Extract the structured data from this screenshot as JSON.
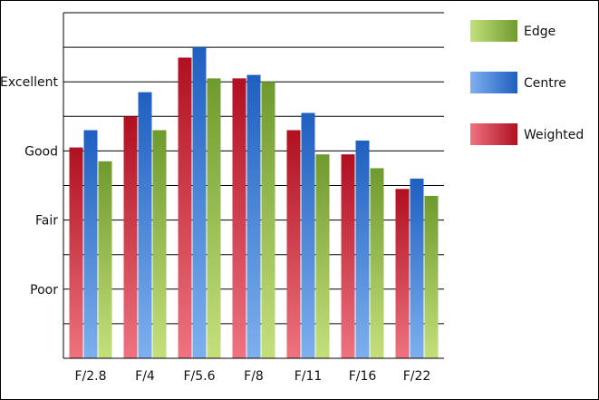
{
  "chart_data": {
    "type": "bar",
    "title": "",
    "xlabel": "",
    "ylabel": "",
    "categories": [
      "F/2.8",
      "F/4",
      "F/5.6",
      "F/8",
      "F/11",
      "F/16",
      "F/22"
    ],
    "y_tick_labels": [
      "Poor",
      "Fair",
      "Good",
      "Excellent"
    ],
    "y_tick_values": [
      1,
      2,
      3,
      4
    ],
    "ylim": [
      0,
      5
    ],
    "grid": true,
    "legend_position": "right",
    "series": [
      {
        "name": "Weighted",
        "color": "#d8283a",
        "values": [
          3.05,
          3.5,
          4.35,
          4.05,
          3.3,
          2.95,
          2.45
        ]
      },
      {
        "name": "Centre",
        "color": "#3f7fd6",
        "values": [
          3.3,
          3.85,
          4.5,
          4.1,
          3.55,
          3.15,
          2.6
        ]
      },
      {
        "name": "Edge",
        "color": "#8fb84a",
        "values": [
          2.85,
          3.3,
          4.05,
          4.0,
          2.95,
          2.75,
          2.35
        ]
      }
    ],
    "legend_order": [
      "Edge",
      "Centre",
      "Weighted"
    ]
  }
}
